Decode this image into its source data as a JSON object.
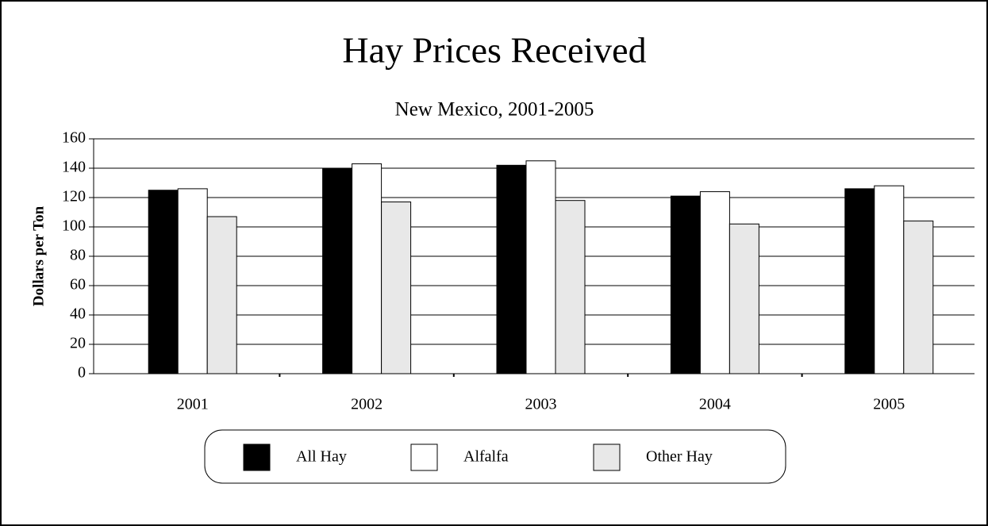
{
  "chart_data": {
    "type": "bar",
    "title": "Hay Prices Received",
    "subtitle": "New Mexico, 2001-2005",
    "y_label": "Dollars per Ton",
    "categories": [
      "2001",
      "2002",
      "2003",
      "2004",
      "2005"
    ],
    "series": [
      {
        "name": "All Hay",
        "color": "#000000",
        "values": [
          125,
          140,
          142,
          121,
          126
        ]
      },
      {
        "name": "Alfalfa",
        "color": "#ffffff",
        "values": [
          126,
          143,
          145,
          124,
          128
        ]
      },
      {
        "name": "Other Hay",
        "color": "#e8e8e8",
        "values": [
          107,
          117,
          118,
          102,
          104
        ]
      }
    ],
    "ylim": [
      0,
      160
    ],
    "yticks": [
      0,
      20,
      40,
      60,
      80,
      100,
      120,
      140,
      160
    ],
    "grid": true,
    "legend": "bottom"
  }
}
